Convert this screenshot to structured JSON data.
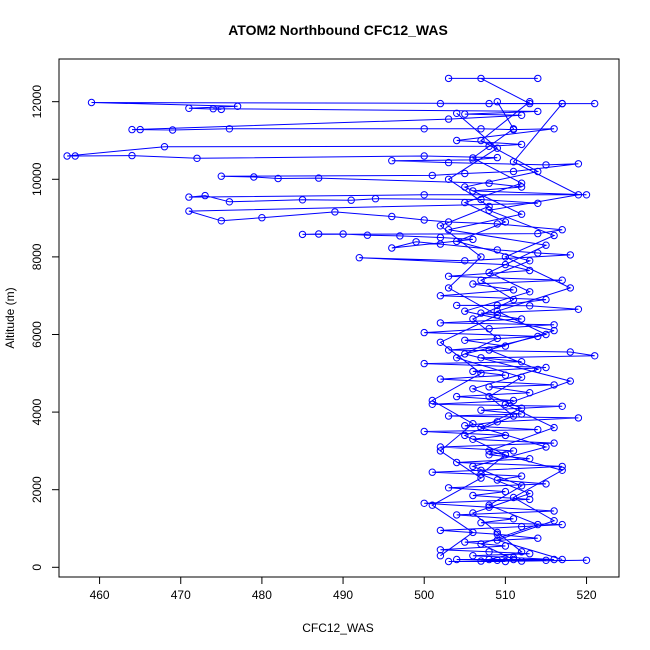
{
  "chart_data": {
    "type": "line",
    "title": "ATOM2 Northbound CFC12_WAS",
    "xlabel": "CFC12_WAS",
    "ylabel": "Altitude (m)",
    "xlim": [
      455,
      524
    ],
    "ylim": [
      -250,
      13100
    ],
    "xticks": [
      460,
      470,
      480,
      490,
      500,
      510,
      520
    ],
    "yticks": [
      0,
      2000,
      4000,
      6000,
      8000,
      10000,
      12000
    ],
    "series_color": "#0000ff",
    "series": [
      {
        "points": [
          [
            503,
            12600
          ],
          [
            514,
            12600
          ],
          [
            507,
            12600
          ],
          [
            513,
            11950
          ],
          [
            502,
            11950
          ],
          [
            508,
            11950
          ],
          [
            521,
            11950
          ],
          [
            517,
            11950
          ],
          [
            459,
            11980
          ],
          [
            477,
            11880
          ],
          [
            471,
            11830
          ],
          [
            475,
            11800
          ],
          [
            474,
            11820
          ],
          [
            514,
            11750
          ],
          [
            505,
            11680
          ],
          [
            512,
            11650
          ],
          [
            503,
            11550
          ],
          [
            464,
            11280
          ],
          [
            465,
            11280
          ],
          [
            469,
            11270
          ],
          [
            476,
            11300
          ],
          [
            500,
            11300
          ],
          [
            507,
            11300
          ],
          [
            511,
            11280
          ],
          [
            516,
            11300
          ],
          [
            504,
            11000
          ],
          [
            512,
            10900
          ],
          [
            508,
            10850
          ],
          [
            468,
            10840
          ],
          [
            456,
            10600
          ],
          [
            457,
            10600
          ],
          [
            464,
            10610
          ],
          [
            472,
            10540
          ],
          [
            500,
            10600
          ],
          [
            509,
            10560
          ],
          [
            506,
            10500
          ],
          [
            496,
            10480
          ],
          [
            503,
            10430
          ],
          [
            515,
            10370
          ],
          [
            519,
            10400
          ],
          [
            511,
            10200
          ],
          [
            505,
            10150
          ],
          [
            501,
            10100
          ],
          [
            475,
            10080
          ],
          [
            479,
            10060
          ],
          [
            482,
            10020
          ],
          [
            487,
            10030
          ],
          [
            508,
            9900
          ],
          [
            512,
            9800
          ],
          [
            506,
            9700
          ],
          [
            520,
            9600
          ],
          [
            500,
            9600
          ],
          [
            471,
            9540
          ],
          [
            473,
            9580
          ],
          [
            476,
            9420
          ],
          [
            485,
            9470
          ],
          [
            491,
            9460
          ],
          [
            494,
            9500
          ],
          [
            507,
            9480
          ],
          [
            514,
            9380
          ],
          [
            471,
            9180
          ],
          [
            475,
            8930
          ],
          [
            480,
            9010
          ],
          [
            489,
            9160
          ],
          [
            496,
            9040
          ],
          [
            500,
            8950
          ],
          [
            503,
            8900
          ],
          [
            509,
            8850
          ],
          [
            517,
            8700
          ],
          [
            514,
            8600
          ],
          [
            485,
            8580
          ],
          [
            487,
            8590
          ],
          [
            490,
            8590
          ],
          [
            493,
            8560
          ],
          [
            497,
            8540
          ],
          [
            502,
            8500
          ],
          [
            506,
            8450
          ],
          [
            496,
            8230
          ],
          [
            499,
            8390
          ],
          [
            502,
            8330
          ],
          [
            509,
            8180
          ],
          [
            514,
            8100
          ],
          [
            518,
            8050
          ],
          [
            505,
            7900
          ],
          [
            492,
            7980
          ],
          [
            510,
            7800
          ],
          [
            513,
            7650
          ],
          [
            503,
            7500
          ],
          [
            517,
            7400
          ],
          [
            506,
            7300
          ],
          [
            511,
            7150
          ],
          [
            502,
            7000
          ],
          [
            515,
            6900
          ],
          [
            509,
            6750
          ],
          [
            504,
            6750
          ],
          [
            513,
            6740
          ],
          [
            519,
            6650
          ],
          [
            507,
            6550
          ],
          [
            512,
            6400
          ],
          [
            502,
            6300
          ],
          [
            516,
            6250
          ],
          [
            508,
            6150
          ],
          [
            500,
            6050
          ],
          [
            514,
            5950
          ],
          [
            505,
            5850
          ],
          [
            510,
            5700
          ],
          [
            503,
            5600
          ],
          [
            518,
            5550
          ],
          [
            521,
            5450
          ],
          [
            507,
            5400
          ],
          [
            512,
            5300
          ],
          [
            500,
            5250
          ],
          [
            515,
            5150
          ],
          [
            506,
            5050
          ],
          [
            510,
            4950
          ],
          [
            502,
            4850
          ],
          [
            516,
            4700
          ],
          [
            508,
            4650
          ],
          [
            513,
            4500
          ],
          [
            504,
            4400
          ],
          [
            511,
            4300
          ],
          [
            501,
            4200
          ],
          [
            517,
            4150
          ],
          [
            507,
            4050
          ],
          [
            512,
            3950
          ],
          [
            503,
            3900
          ],
          [
            519,
            3850
          ],
          [
            509,
            3750
          ],
          [
            505,
            3650
          ],
          [
            514,
            3550
          ],
          [
            500,
            3500
          ],
          [
            510,
            3400
          ],
          [
            506,
            3300
          ],
          [
            516,
            3200
          ],
          [
            502,
            3100
          ],
          [
            511,
            3000
          ],
          [
            508,
            2900
          ],
          [
            513,
            2800
          ],
          [
            504,
            2700
          ],
          [
            517,
            2600
          ],
          [
            507,
            2500
          ],
          [
            501,
            2450
          ],
          [
            512,
            2350
          ],
          [
            509,
            2250
          ],
          [
            515,
            2150
          ],
          [
            503,
            2050
          ],
          [
            510,
            1950
          ],
          [
            506,
            1850
          ],
          [
            513,
            1750
          ],
          [
            500,
            1650
          ],
          [
            508,
            1550
          ],
          [
            516,
            1450
          ],
          [
            504,
            1350
          ],
          [
            511,
            1250
          ],
          [
            507,
            1150
          ],
          [
            517,
            1100
          ],
          [
            512,
            1050
          ],
          [
            502,
            950
          ],
          [
            509,
            850
          ],
          [
            514,
            750
          ],
          [
            505,
            650
          ],
          [
            510,
            550
          ],
          [
            502,
            450
          ],
          [
            508,
            400
          ],
          [
            513,
            350
          ],
          [
            506,
            300
          ],
          [
            511,
            250
          ],
          [
            516,
            200
          ],
          [
            504,
            200
          ],
          [
            509,
            180
          ],
          [
            515,
            180
          ],
          [
            507,
            160
          ],
          [
            512,
            160
          ],
          [
            520,
            180
          ],
          [
            503,
            150
          ],
          [
            510,
            150
          ]
        ]
      },
      {
        "points": [
          [
            509,
            12000
          ],
          [
            511,
            11300
          ],
          [
            506,
            10550
          ],
          [
            512,
            9900
          ],
          [
            505,
            9400
          ],
          [
            510,
            8900
          ],
          [
            504,
            8400
          ],
          [
            513,
            7900
          ],
          [
            507,
            7400
          ],
          [
            511,
            6900
          ],
          [
            506,
            6400
          ],
          [
            509,
            5900
          ],
          [
            504,
            5400
          ],
          [
            512,
            4900
          ],
          [
            508,
            4400
          ],
          [
            511,
            3900
          ],
          [
            505,
            3400
          ],
          [
            510,
            2900
          ],
          [
            507,
            2400
          ],
          [
            513,
            1900
          ],
          [
            506,
            1400
          ],
          [
            509,
            900
          ],
          [
            512,
            400
          ],
          [
            508,
            200
          ]
        ]
      },
      {
        "points": [
          [
            513,
            12000
          ],
          [
            507,
            11000
          ],
          [
            514,
            10200
          ],
          [
            505,
            9800
          ],
          [
            512,
            9100
          ],
          [
            503,
            8700
          ],
          [
            515,
            8300
          ],
          [
            508,
            7600
          ],
          [
            513,
            7100
          ],
          [
            505,
            6600
          ],
          [
            516,
            6100
          ],
          [
            508,
            5600
          ],
          [
            514,
            5100
          ],
          [
            506,
            4600
          ],
          [
            512,
            4100
          ],
          [
            507,
            3600
          ],
          [
            515,
            3100
          ],
          [
            506,
            2600
          ],
          [
            512,
            2100
          ],
          [
            508,
            1600
          ],
          [
            514,
            1100
          ],
          [
            507,
            600
          ],
          [
            511,
            200
          ]
        ]
      },
      {
        "points": [
          [
            517,
            11950
          ],
          [
            511,
            10450
          ],
          [
            519,
            9600
          ],
          [
            508,
            9200
          ],
          [
            516,
            8550
          ],
          [
            510,
            8000
          ],
          [
            518,
            7200
          ],
          [
            509,
            6600
          ],
          [
            515,
            6000
          ],
          [
            505,
            5500
          ],
          [
            518,
            4800
          ],
          [
            510,
            4200
          ],
          [
            516,
            3600
          ],
          [
            508,
            3000
          ],
          [
            517,
            2500
          ],
          [
            511,
            1800
          ],
          [
            516,
            1200
          ],
          [
            509,
            700
          ],
          [
            517,
            200
          ]
        ]
      },
      {
        "points": [
          [
            504,
            11700
          ],
          [
            509,
            10800
          ],
          [
            503,
            10000
          ],
          [
            508,
            9300
          ],
          [
            502,
            8800
          ],
          [
            507,
            8000
          ],
          [
            503,
            7200
          ],
          [
            509,
            6500
          ],
          [
            502,
            5800
          ],
          [
            507,
            5000
          ],
          [
            501,
            4300
          ],
          [
            506,
            3700
          ],
          [
            502,
            3000
          ],
          [
            507,
            2300
          ],
          [
            501,
            1600
          ],
          [
            506,
            900
          ],
          [
            502,
            300
          ]
        ]
      }
    ]
  }
}
